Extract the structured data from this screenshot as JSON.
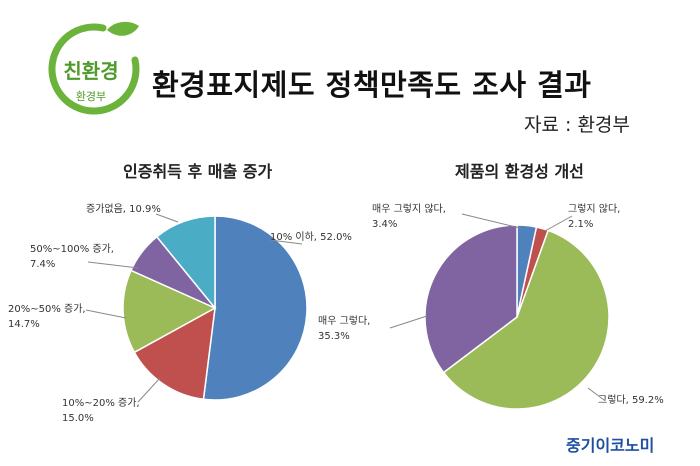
{
  "logo": {
    "main": "친환경",
    "sub": "환경부"
  },
  "title": "환경표지제도 정책만족도 조사 결과",
  "source": "자료 : 환경부",
  "brand": "중기이코노미",
  "chart_data": [
    {
      "type": "pie",
      "title": "인증취득 후 매출 증가",
      "slices": [
        {
          "label": "10% 이하, 52.0%",
          "value": 52.0,
          "color": "#4f81bd"
        },
        {
          "label": "10%~20% 증가, 15.0%",
          "value": 15.0,
          "color": "#c0504d"
        },
        {
          "label": "20%~50% 증가, 14.7%",
          "value": 14.7,
          "color": "#9bbb59"
        },
        {
          "label": "50%~100% 증가, 7.4%",
          "value": 7.4,
          "color": "#8064a2"
        },
        {
          "label": "증가없음, 10.9%",
          "value": 10.9,
          "color": "#4bacc6"
        }
      ]
    },
    {
      "type": "pie",
      "title": "제품의 환경성 개선",
      "slices": [
        {
          "label": "매우 그렇지 않다, 3.4%",
          "value": 3.4,
          "color": "#4f81bd"
        },
        {
          "label": "그렇지 않다, 2.1%",
          "value": 2.1,
          "color": "#c0504d"
        },
        {
          "label": "그렇다, 59.2%",
          "value": 59.2,
          "color": "#9bbb59"
        },
        {
          "label": "매우 그렇다, 35.3%",
          "value": 35.3,
          "color": "#8064a2"
        }
      ]
    }
  ]
}
